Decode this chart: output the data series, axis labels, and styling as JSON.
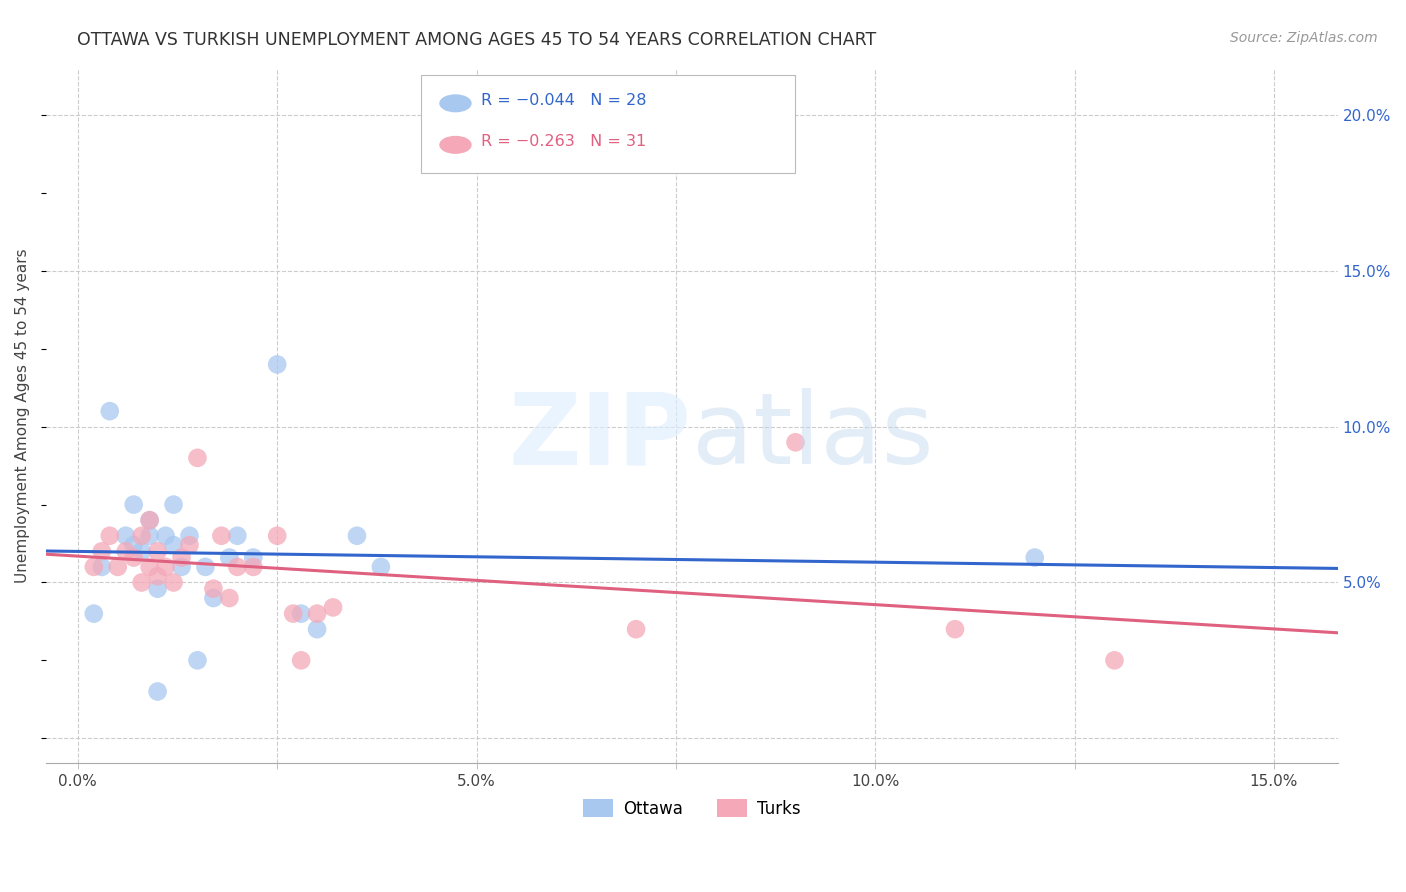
{
  "title": "OTTAWA VS TURKISH UNEMPLOYMENT AMONG AGES 45 TO 54 YEARS CORRELATION CHART",
  "source": "Source: ZipAtlas.com",
  "ylabel": "Unemployment Among Ages 45 to 54 years",
  "xlabel_ticks": [
    0.0,
    0.025,
    0.05,
    0.075,
    0.1,
    0.125,
    0.15
  ],
  "xlabel_labels": [
    "0.0%",
    "",
    "5.0%",
    "",
    "10.0%",
    "",
    "15.0%"
  ],
  "xmin": -0.004,
  "xmax": 0.158,
  "ymin": -0.008,
  "ymax": 0.215,
  "yticks_right": [
    0.0,
    0.05,
    0.1,
    0.15,
    0.2
  ],
  "ytick_labels_right": [
    "",
    "5.0%",
    "10.0%",
    "15.0%",
    "20.0%"
  ],
  "grid_color": "#cccccc",
  "background_color": "#ffffff",
  "ottawa_color": "#a8c8f0",
  "turks_color": "#f4a8b8",
  "ottawa_line_color": "#3366cc",
  "turks_line_color": "#e06080",
  "legend_r_ottawa": "R = −0.044",
  "legend_n_ottawa": "N = 28",
  "legend_r_turks": "R = −0.263",
  "legend_n_turks": "N = 31",
  "ottawa_x": [
    0.002,
    0.003,
    0.004,
    0.006,
    0.007,
    0.007,
    0.008,
    0.009,
    0.009,
    0.01,
    0.01,
    0.011,
    0.012,
    0.012,
    0.013,
    0.014,
    0.015,
    0.016,
    0.017,
    0.019,
    0.02,
    0.022,
    0.025,
    0.028,
    0.03,
    0.035,
    0.038,
    0.12
  ],
  "ottawa_y": [
    0.04,
    0.055,
    0.105,
    0.065,
    0.075,
    0.062,
    0.06,
    0.065,
    0.07,
    0.015,
    0.048,
    0.065,
    0.062,
    0.075,
    0.055,
    0.065,
    0.025,
    0.055,
    0.045,
    0.058,
    0.065,
    0.058,
    0.12,
    0.04,
    0.035,
    0.065,
    0.055,
    0.058
  ],
  "turks_x": [
    0.002,
    0.003,
    0.004,
    0.005,
    0.006,
    0.007,
    0.008,
    0.008,
    0.009,
    0.009,
    0.01,
    0.01,
    0.011,
    0.012,
    0.013,
    0.014,
    0.015,
    0.017,
    0.018,
    0.019,
    0.02,
    0.022,
    0.025,
    0.027,
    0.028,
    0.03,
    0.032,
    0.07,
    0.09,
    0.11,
    0.13
  ],
  "turks_y": [
    0.055,
    0.06,
    0.065,
    0.055,
    0.06,
    0.058,
    0.05,
    0.065,
    0.055,
    0.07,
    0.06,
    0.052,
    0.055,
    0.05,
    0.058,
    0.062,
    0.09,
    0.048,
    0.065,
    0.045,
    0.055,
    0.055,
    0.065,
    0.04,
    0.025,
    0.04,
    0.042,
    0.035,
    0.095,
    0.035,
    0.025
  ]
}
